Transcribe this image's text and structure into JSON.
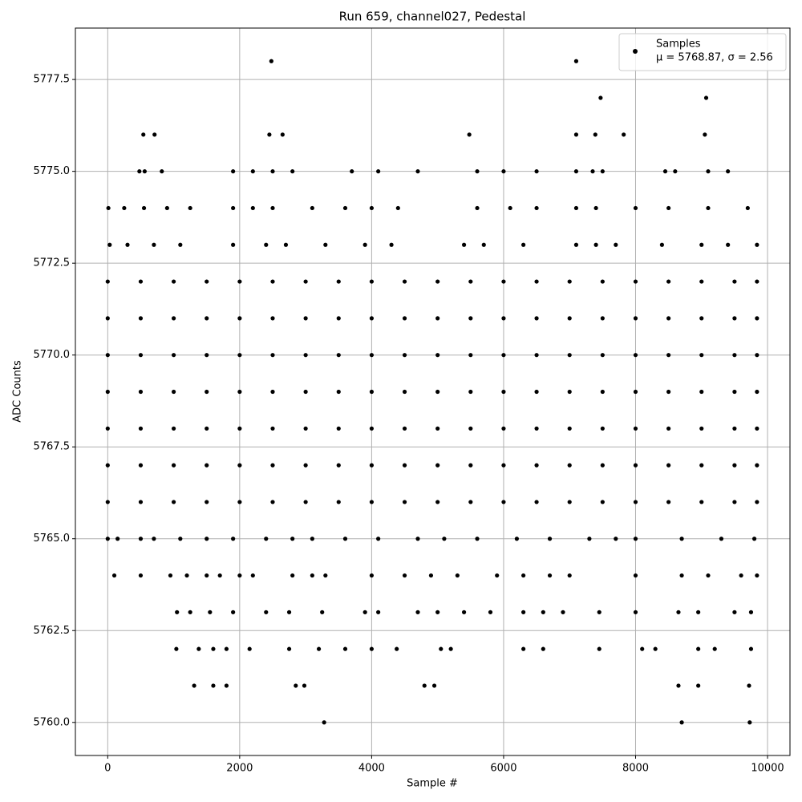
{
  "chart_data": {
    "type": "scatter",
    "title": "Run 659, channel027, Pedestal",
    "x_label": "Sample #",
    "y_label": "ADC Counts",
    "xlim": [
      -490,
      10340
    ],
    "ylim": [
      5759.1,
      5778.9
    ],
    "xticks": [
      0,
      2000,
      4000,
      6000,
      8000,
      10000
    ],
    "yticks": [
      {
        "value": 5760,
        "label": "5760.0"
      },
      {
        "value": 5762.5,
        "label": "5762.5"
      },
      {
        "value": 5765,
        "label": "5765.0"
      },
      {
        "value": 5767.5,
        "label": "5767.5"
      },
      {
        "value": 5770,
        "label": "5770.0"
      },
      {
        "value": 5772.5,
        "label": "5772.5"
      },
      {
        "value": 5775,
        "label": "5775.0"
      },
      {
        "value": 5777.5,
        "label": "5777.5"
      }
    ],
    "grid": true,
    "legend": "upper right",
    "legend_note": "μ = 5768.87, σ = 2.56",
    "series": [
      {
        "name": "Samples",
        "color": "#000000",
        "x": [
          0,
          500,
          1000,
          1500,
          2000,
          2500,
          3000,
          3500,
          4000,
          4500,
          5000,
          5500,
          6000,
          6500,
          7000,
          7500,
          8000,
          8500,
          9000,
          9500,
          9840,
          0,
          500,
          1000,
          1500,
          2000,
          2500,
          3000,
          3500,
          4000,
          4500,
          5000,
          5500,
          6000,
          6500,
          7000,
          7500,
          8000,
          8500,
          9000,
          9500,
          9840,
          0,
          500,
          1000,
          1500,
          2000,
          2500,
          3000,
          3500,
          4000,
          4500,
          5000,
          5500,
          6000,
          6500,
          7000,
          7500,
          8000,
          8500,
          9000,
          9500,
          9840,
          0,
          500,
          1000,
          1500,
          2000,
          2500,
          3000,
          3500,
          4000,
          4500,
          5000,
          5500,
          6000,
          6500,
          7000,
          7500,
          8000,
          8500,
          9000,
          9500,
          9840,
          0,
          500,
          1000,
          1500,
          2000,
          2500,
          3000,
          3500,
          4000,
          4500,
          5000,
          5500,
          6000,
          6500,
          7000,
          7500,
          8000,
          8500,
          9000,
          9500,
          9840,
          0,
          500,
          1000,
          1500,
          2000,
          2500,
          3000,
          3500,
          4000,
          4500,
          5000,
          5500,
          6000,
          6500,
          7000,
          7500,
          8000,
          8500,
          9000,
          9500,
          9840,
          0,
          500,
          1000,
          1500,
          2000,
          2500,
          3000,
          3500,
          4000,
          4500,
          5000,
          5500,
          6000,
          6500,
          7000,
          7500,
          8000,
          8500,
          9000,
          9500,
          9840,
          30,
          300,
          700,
          1100,
          1900,
          2400,
          2700,
          3300,
          3900,
          4300,
          5400,
          5700,
          6300,
          7100,
          7400,
          7700,
          8400,
          9000,
          9400,
          9840,
          10,
          250,
          550,
          900,
          1250,
          1900,
          2200,
          2500,
          3100,
          3600,
          4000,
          4400,
          5600,
          6100,
          6500,
          7100,
          7400,
          8000,
          8500,
          9100,
          9700,
          0,
          150,
          500,
          700,
          1100,
          1500,
          1900,
          2400,
          2800,
          3100,
          3600,
          4100,
          4700,
          5100,
          5600,
          6200,
          6700,
          7300,
          7700,
          8000,
          8700,
          9300,
          9800,
          100,
          500,
          950,
          1200,
          1500,
          1700,
          2000,
          2200,
          2800,
          3100,
          3300,
          4000,
          4500,
          4900,
          5300,
          5900,
          6300,
          6700,
          7000,
          8000,
          8700,
          9100,
          9600,
          9840,
          1050,
          1250,
          1550,
          1900,
          2400,
          2750,
          3250,
          3900,
          4100,
          4700,
          5000,
          5400,
          5800,
          6300,
          6600,
          6900,
          7450,
          8000,
          8650,
          8950,
          9500,
          9750,
          1040,
          1380,
          1600,
          1800,
          2150,
          2750,
          3200,
          3600,
          4000,
          4380,
          5050,
          5200,
          6300,
          6600,
          7450,
          8100,
          8300,
          8950,
          9200,
          9750,
          1310,
          1600,
          1800,
          2850,
          2980,
          4800,
          4950,
          8650,
          8950,
          9720,
          3280,
          8700,
          9730,
          480,
          560,
          820,
          1900,
          2200,
          2500,
          2800,
          3700,
          4100,
          4700,
          5600,
          6000,
          6500,
          7100,
          7350,
          7500,
          8450,
          8600,
          9100,
          9400,
          540,
          710,
          2450,
          2650,
          5480,
          7100,
          7390,
          7820,
          9050,
          7470,
          9070,
          2480,
          7100
        ],
        "values": [
          5766,
          5766,
          5766,
          5766,
          5766,
          5766,
          5766,
          5766,
          5766,
          5766,
          5766,
          5766,
          5766,
          5766,
          5766,
          5766,
          5766,
          5766,
          5766,
          5766,
          5766,
          5767,
          5767,
          5767,
          5767,
          5767,
          5767,
          5767,
          5767,
          5767,
          5767,
          5767,
          5767,
          5767,
          5767,
          5767,
          5767,
          5767,
          5767,
          5767,
          5767,
          5767,
          5768,
          5768,
          5768,
          5768,
          5768,
          5768,
          5768,
          5768,
          5768,
          5768,
          5768,
          5768,
          5768,
          5768,
          5768,
          5768,
          5768,
          5768,
          5768,
          5768,
          5768,
          5769,
          5769,
          5769,
          5769,
          5769,
          5769,
          5769,
          5769,
          5769,
          5769,
          5769,
          5769,
          5769,
          5769,
          5769,
          5769,
          5769,
          5769,
          5769,
          5769,
          5769,
          5770,
          5770,
          5770,
          5770,
          5770,
          5770,
          5770,
          5770,
          5770,
          5770,
          5770,
          5770,
          5770,
          5770,
          5770,
          5770,
          5770,
          5770,
          5770,
          5770,
          5770,
          5771,
          5771,
          5771,
          5771,
          5771,
          5771,
          5771,
          5771,
          5771,
          5771,
          5771,
          5771,
          5771,
          5771,
          5771,
          5771,
          5771,
          5771,
          5771,
          5771,
          5771,
          5772,
          5772,
          5772,
          5772,
          5772,
          5772,
          5772,
          5772,
          5772,
          5772,
          5772,
          5772,
          5772,
          5772,
          5772,
          5772,
          5772,
          5772,
          5772,
          5772,
          5772,
          5773,
          5773,
          5773,
          5773,
          5773,
          5773,
          5773,
          5773,
          5773,
          5773,
          5773,
          5773,
          5773,
          5773,
          5773,
          5773,
          5773,
          5773,
          5773,
          5773,
          5774,
          5774,
          5774,
          5774,
          5774,
          5774,
          5774,
          5774,
          5774,
          5774,
          5774,
          5774,
          5774,
          5774,
          5774,
          5774,
          5774,
          5774,
          5774,
          5774,
          5774,
          5765,
          5765,
          5765,
          5765,
          5765,
          5765,
          5765,
          5765,
          5765,
          5765,
          5765,
          5765,
          5765,
          5765,
          5765,
          5765,
          5765,
          5765,
          5765,
          5765,
          5765,
          5765,
          5765,
          5764,
          5764,
          5764,
          5764,
          5764,
          5764,
          5764,
          5764,
          5764,
          5764,
          5764,
          5764,
          5764,
          5764,
          5764,
          5764,
          5764,
          5764,
          5764,
          5764,
          5764,
          5764,
          5764,
          5764,
          5763,
          5763,
          5763,
          5763,
          5763,
          5763,
          5763,
          5763,
          5763,
          5763,
          5763,
          5763,
          5763,
          5763,
          5763,
          5763,
          5763,
          5763,
          5763,
          5763,
          5763,
          5763,
          5762,
          5762,
          5762,
          5762,
          5762,
          5762,
          5762,
          5762,
          5762,
          5762,
          5762,
          5762,
          5762,
          5762,
          5762,
          5762,
          5762,
          5762,
          5762,
          5762,
          5761,
          5761,
          5761,
          5761,
          5761,
          5761,
          5761,
          5761,
          5761,
          5761,
          5760,
          5760,
          5760,
          5775,
          5775,
          5775,
          5775,
          5775,
          5775,
          5775,
          5775,
          5775,
          5775,
          5775,
          5775,
          5775,
          5775,
          5775,
          5775,
          5775,
          5775,
          5775,
          5775,
          5776,
          5776,
          5776,
          5776,
          5776,
          5776,
          5776,
          5776,
          5776,
          5777,
          5777,
          5778,
          5778
        ]
      }
    ]
  }
}
